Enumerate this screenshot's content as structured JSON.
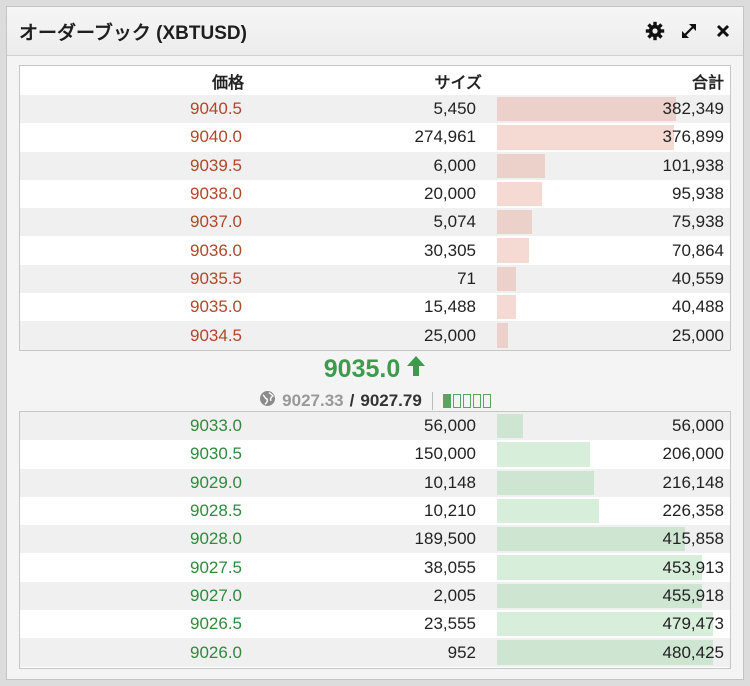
{
  "header": {
    "title": "オーダーブック (XBTUSD)",
    "icons": [
      "gear-icon",
      "expand-icon",
      "close-icon"
    ]
  },
  "columns": {
    "price": "価格",
    "size": "サイズ",
    "total": "合計"
  },
  "asks": [
    {
      "price": "9040.5",
      "size": "5,450",
      "total": "382,349",
      "depth": 0.83
    },
    {
      "price": "9040.0",
      "size": "274,961",
      "total": "376,899",
      "depth": 0.82
    },
    {
      "price": "9039.5",
      "size": "6,000",
      "total": "101,938",
      "depth": 0.22
    },
    {
      "price": "9038.0",
      "size": "20,000",
      "total": "95,938",
      "depth": 0.21
    },
    {
      "price": "9037.0",
      "size": "5,074",
      "total": "75,938",
      "depth": 0.16
    },
    {
      "price": "9036.0",
      "size": "30,305",
      "total": "70,864",
      "depth": 0.15
    },
    {
      "price": "9035.5",
      "size": "71",
      "total": "40,559",
      "depth": 0.09
    },
    {
      "price": "9035.0",
      "size": "15,488",
      "total": "40,488",
      "depth": 0.09
    },
    {
      "price": "9034.5",
      "size": "25,000",
      "total": "25,000",
      "depth": 0.05
    }
  ],
  "mid": {
    "last_price": "9035.0",
    "direction": "up",
    "index_price": "9027.33",
    "separator": "/",
    "mark_price": "9027.79",
    "meter_total": 5,
    "meter_filled": 1
  },
  "bids": [
    {
      "price": "9033.0",
      "size": "56,000",
      "total": "56,000",
      "depth": 0.12
    },
    {
      "price": "9030.5",
      "size": "150,000",
      "total": "206,000",
      "depth": 0.43
    },
    {
      "price": "9029.0",
      "size": "10,148",
      "total": "216,148",
      "depth": 0.45
    },
    {
      "price": "9028.5",
      "size": "10,210",
      "total": "226,358",
      "depth": 0.47
    },
    {
      "price": "9028.0",
      "size": "189,500",
      "total": "415,858",
      "depth": 0.87
    },
    {
      "price": "9027.5",
      "size": "38,055",
      "total": "453,913",
      "depth": 0.95
    },
    {
      "price": "9027.0",
      "size": "2,005",
      "total": "455,918",
      "depth": 0.95
    },
    {
      "price": "9026.5",
      "size": "23,555",
      "total": "479,473",
      "depth": 1.0
    },
    {
      "price": "9026.0",
      "size": "952",
      "total": "480,425",
      "depth": 1.0
    }
  ],
  "colors": {
    "ask": "#b0472a",
    "bid": "#2f8a3c",
    "last_up": "#3e9a4d"
  }
}
